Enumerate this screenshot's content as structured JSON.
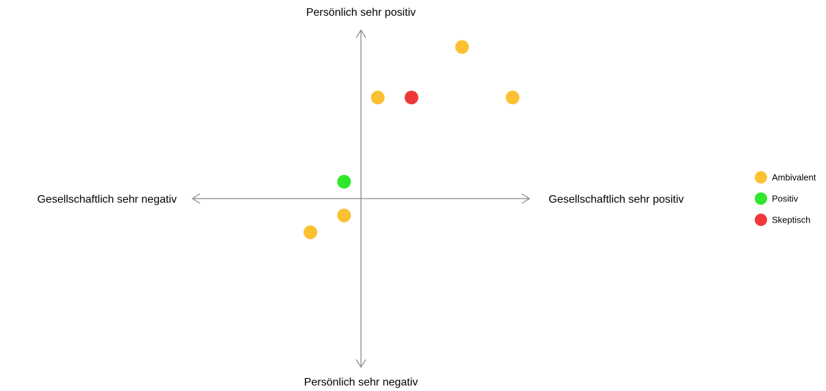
{
  "chart_data": {
    "type": "scatter",
    "y_label_top": "Persönlich sehr positiv",
    "y_label_bottom": "Persönlich sehr negativ",
    "x_label_left": "Gesellschaftlich sehr negativ",
    "x_label_right": "Gesellschaftlich sehr positiv",
    "xlim": [
      -10,
      10
    ],
    "ylim": [
      -10,
      10
    ],
    "series": [
      {
        "name": "Ambivalent",
        "color": "#fbc132",
        "x": [
          6,
          1,
          9,
          -1,
          -3
        ],
        "values": [
          9,
          6,
          6,
          -1,
          -2
        ]
      },
      {
        "name": "Positiv",
        "color": "#2fe82a",
        "x": [
          -1
        ],
        "values": [
          1
        ]
      },
      {
        "name": "Skeptisch",
        "color": "#f03838",
        "x": [
          3
        ],
        "values": [
          6
        ]
      }
    ]
  }
}
